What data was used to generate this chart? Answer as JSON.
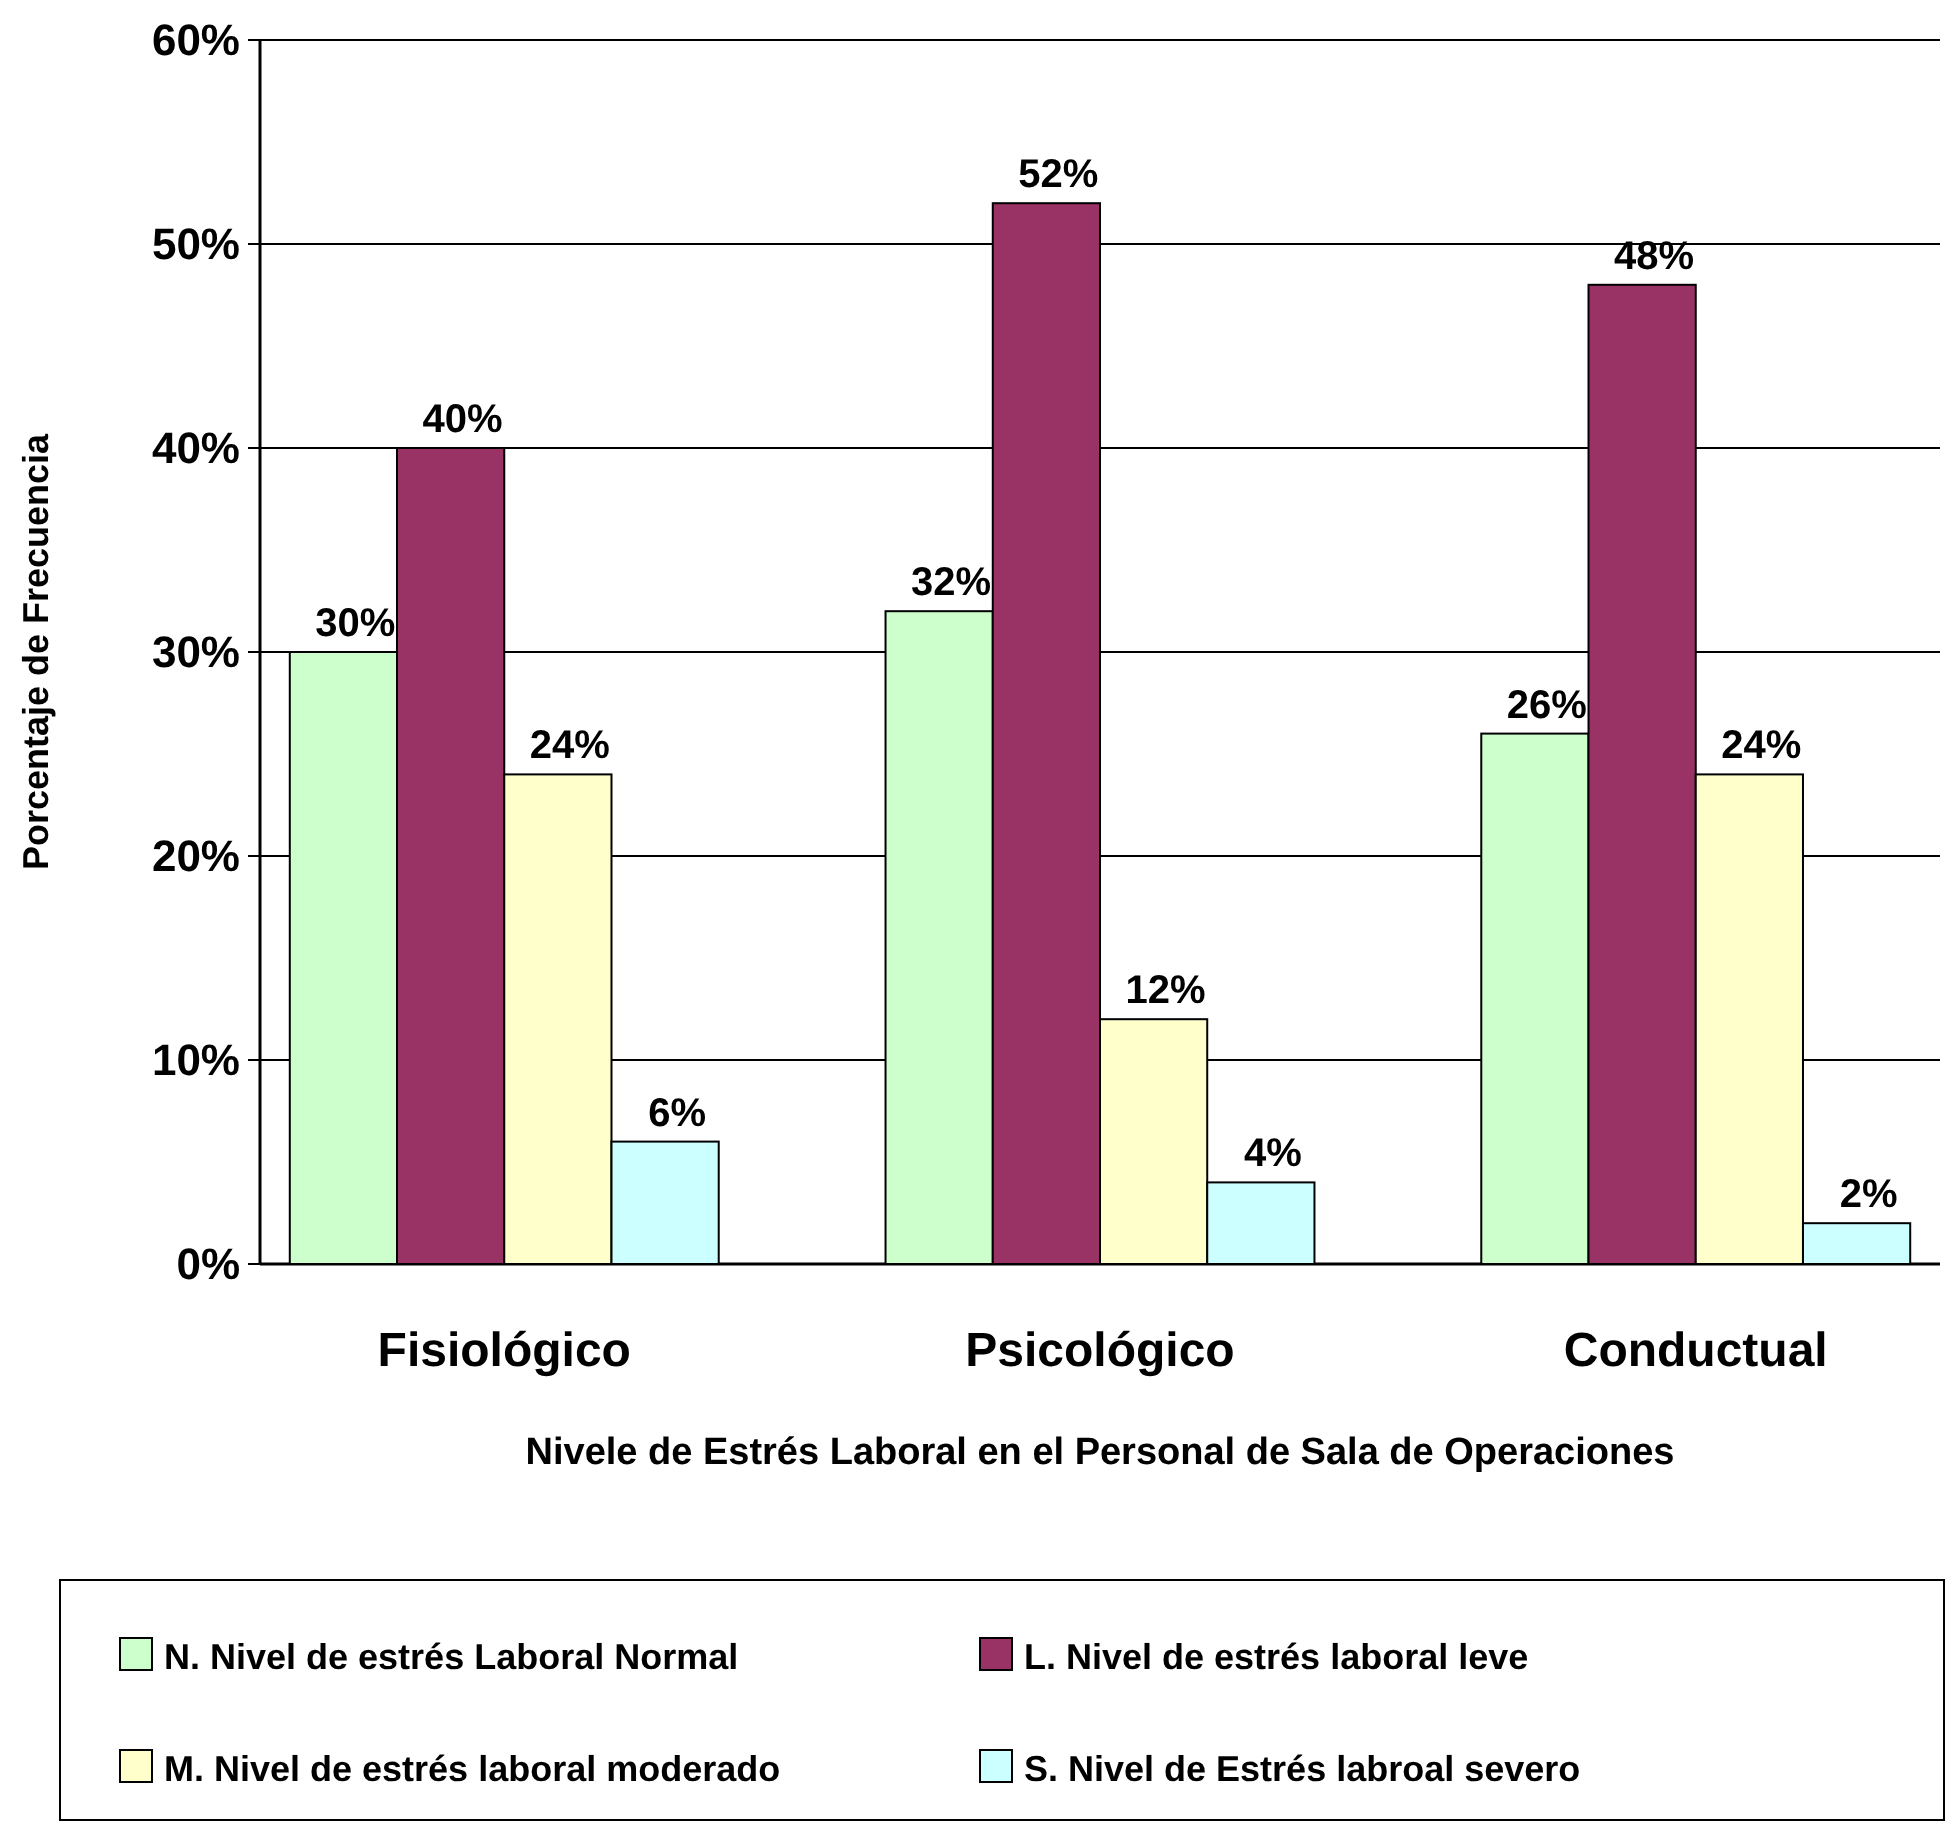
{
  "chart_data": {
    "type": "bar",
    "xlabel": "Nivele de Estrés Laboral en el Personal de Sala de Operaciones",
    "ylabel": "Porcentaje de Frecuencia",
    "categories": [
      "Fisiológico",
      "Psicológico",
      "Conductual"
    ],
    "series": [
      {
        "name": "N. Nivel de estrés Laboral Normal",
        "color": "#ccffcc",
        "values": [
          30,
          32,
          26
        ],
        "value_labels": [
          "30%",
          "32%",
          "26%"
        ]
      },
      {
        "name": "L. Nivel de estrés laboral leve",
        "color": "#993366",
        "values": [
          40,
          52,
          48
        ],
        "value_labels": [
          "40%",
          "52%",
          "48%"
        ]
      },
      {
        "name": "M. Nivel de estrés laboral moderado",
        "color": "#ffffcc",
        "values": [
          24,
          12,
          24
        ],
        "value_labels": [
          "24%",
          "12%",
          "24%"
        ]
      },
      {
        "name": "S. Nivel de Estrés labroal severo",
        "color": "#ccffff",
        "values": [
          6,
          4,
          2
        ],
        "value_labels": [
          "6%",
          "4%",
          "2%"
        ]
      }
    ],
    "ylim": [
      0,
      60
    ],
    "yticks": [
      {
        "value": 0,
        "label": "0%"
      },
      {
        "value": 10,
        "label": "10%"
      },
      {
        "value": 20,
        "label": "20%"
      },
      {
        "value": 30,
        "label": "30%"
      },
      {
        "value": 40,
        "label": "40%"
      },
      {
        "value": 50,
        "label": "50%"
      },
      {
        "value": 60,
        "label": "60%"
      }
    ],
    "grid": "y",
    "legend": "bottom"
  }
}
